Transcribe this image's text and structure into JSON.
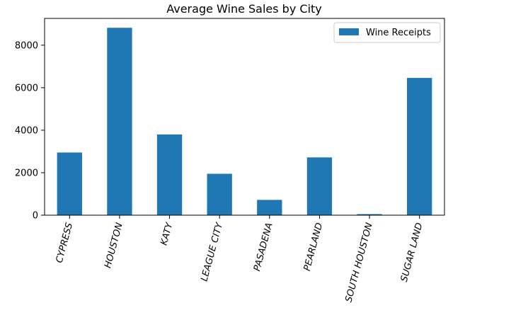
{
  "colors": {
    "bar": "#1f77b4",
    "axis": "#000000",
    "legend_border": "#cccccc"
  },
  "chart_data": {
    "type": "bar",
    "title": "Average Wine Sales by City",
    "xlabel": "",
    "ylabel": "",
    "categories": [
      "CYPRESS",
      "HOUSTON",
      "KATY",
      "LEAGUE CITY",
      "PASADENA",
      "PEARLAND",
      "SOUTH HOUSTON",
      "SUGAR LAND"
    ],
    "series": [
      {
        "name": "Wine Receipts",
        "values": [
          2950,
          8820,
          3800,
          1950,
          720,
          2720,
          50,
          6460
        ]
      }
    ],
    "ylim": [
      0,
      9261
    ],
    "yticks": [
      0,
      2000,
      4000,
      6000,
      8000
    ],
    "grid": false,
    "legend_position": "top-right"
  }
}
